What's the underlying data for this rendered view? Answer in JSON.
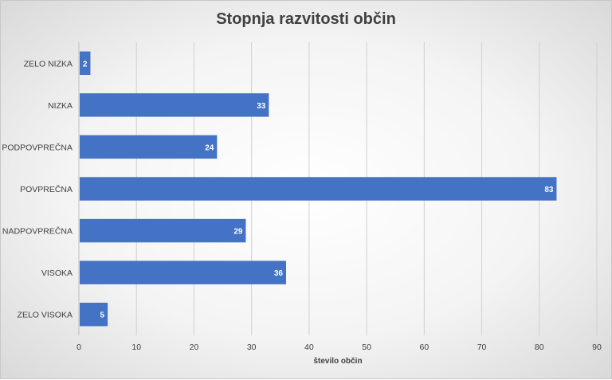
{
  "chart_data": {
    "type": "bar",
    "orientation": "horizontal",
    "title": "Stopnja razvitosti občin",
    "xlabel": "število občin",
    "ylabel": "",
    "categories": [
      "ZELO NIZKA",
      "NIZKA",
      "PODPOVPREČNA",
      "POVPREČNA",
      "NADPOVPREČNA",
      "VISOKA",
      "ZELO VISOKA"
    ],
    "values": [
      2,
      33,
      24,
      83,
      29,
      36,
      5
    ],
    "data_labels": [
      "2",
      "33",
      "24",
      "83",
      "29",
      "36",
      "5"
    ],
    "xlim": [
      0,
      90
    ],
    "xticks": [
      "0",
      "10",
      "20",
      "30",
      "40",
      "50",
      "60",
      "70",
      "80",
      "90"
    ],
    "grid": "vertical",
    "legend": "none",
    "colors": {
      "bar": "#4472c4",
      "grid": "#d0d0d0",
      "text": "#404040"
    }
  }
}
